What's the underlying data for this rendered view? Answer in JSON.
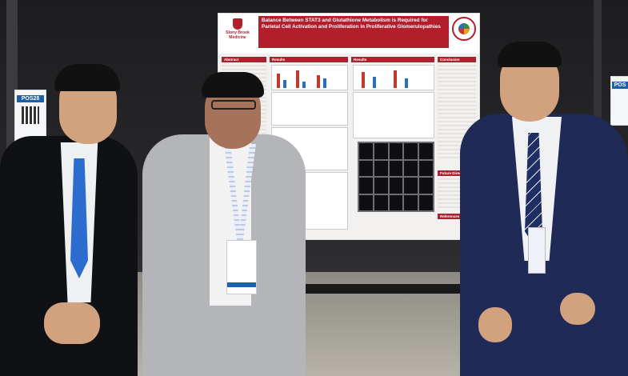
{
  "poster": {
    "title": "Balance Between STAT3 and Glutathione Metabolism is Required for Parietal Cell Activation and Proliferation in Proliferative Glomerulopathies",
    "institution": "Stony Brook Medicine",
    "sections": [
      "Abstract",
      "Results",
      "Results",
      "Conclusion",
      "Future Directions",
      "References"
    ]
  },
  "signs": {
    "left_code": "POS28",
    "right_code": "POS"
  },
  "colors": {
    "poster_red": "#b31e2c",
    "backdrop": "#2a2a2d"
  }
}
